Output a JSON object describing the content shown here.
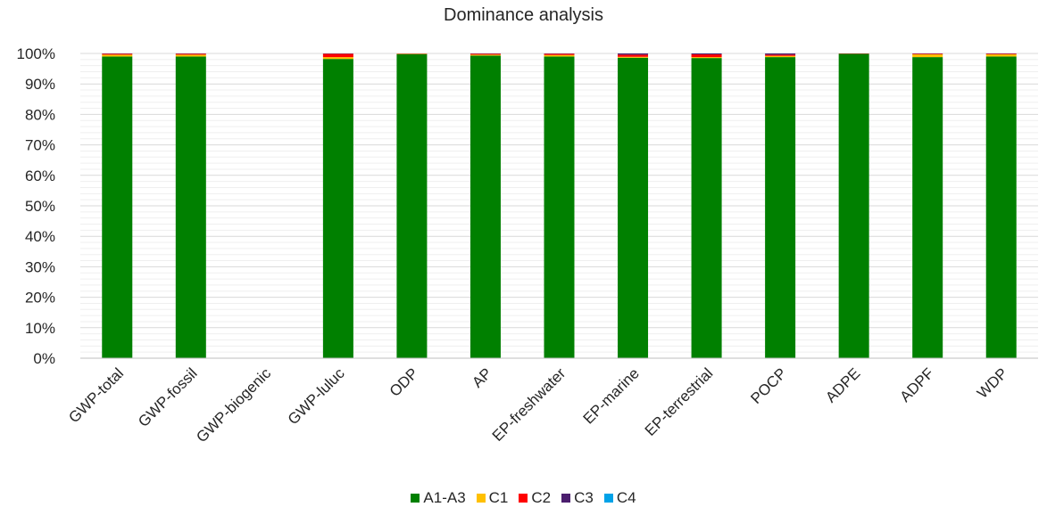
{
  "chart_data": {
    "type": "bar",
    "stacked": true,
    "percent": true,
    "title": "Dominance analysis",
    "categories": [
      "GWP-total",
      "GWP-fossil",
      "GWP-biogenic",
      "GWP-luluc",
      "ODP",
      "AP",
      "EP-freshwater",
      "EP-marine",
      "EP-terrestrial",
      "POCP",
      "ADPE",
      "ADPF",
      "WDP"
    ],
    "series": [
      {
        "name": "A1-A3",
        "color": "#008000",
        "values": [
          99.0,
          99.0,
          0,
          98.2,
          99.8,
          99.3,
          99.0,
          98.6,
          98.5,
          98.8,
          99.9,
          98.8,
          99.0
        ]
      },
      {
        "name": "C1",
        "color": "#FFC000",
        "values": [
          0.6,
          0.6,
          0,
          0.6,
          0.1,
          0.3,
          0.5,
          0.3,
          0.3,
          0.4,
          0.0,
          0.9,
          0.7
        ]
      },
      {
        "name": "C2",
        "color": "#FF0000",
        "values": [
          0.3,
          0.3,
          0,
          1.1,
          0.1,
          0.3,
          0.4,
          0.7,
          0.9,
          0.4,
          0.1,
          0.2,
          0.2
        ]
      },
      {
        "name": "C3",
        "color": "#4B1E6E",
        "values": [
          0.1,
          0.1,
          0,
          0.1,
          0.0,
          0.1,
          0.1,
          0.4,
          0.3,
          0.4,
          0.0,
          0.1,
          0.1
        ]
      },
      {
        "name": "C4",
        "color": "#00A2E8",
        "values": [
          0.0,
          0.0,
          0,
          0.0,
          0.0,
          0.0,
          0.0,
          0.0,
          0.0,
          0.0,
          0.0,
          0.0,
          0.0
        ]
      }
    ],
    "ylim": [
      0,
      100
    ],
    "yticks": [
      "0%",
      "10%",
      "20%",
      "30%",
      "40%",
      "50%",
      "60%",
      "70%",
      "80%",
      "90%",
      "100%"
    ],
    "grid": true,
    "legend_position": "bottom"
  }
}
